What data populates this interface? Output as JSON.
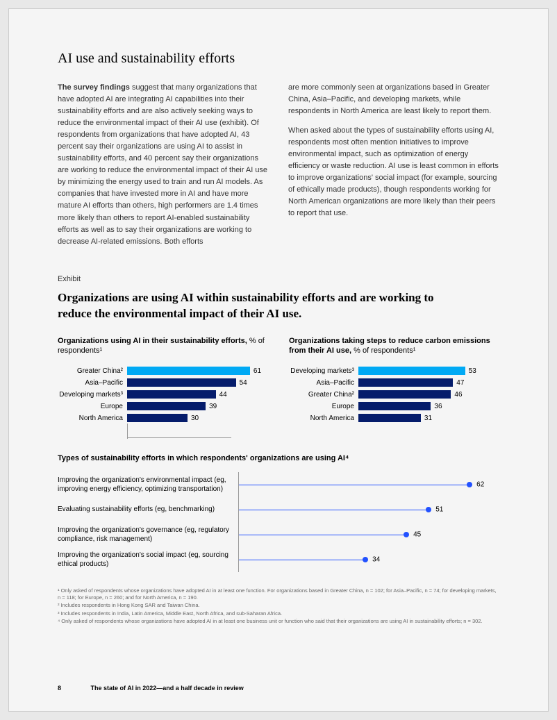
{
  "section_title": "AI use and sustainability efforts",
  "col1_para": "<span class='lead'>The survey findings</span> suggest that many organizations that have adopted AI are integrating AI capabilities into their sustainability efforts and are also actively seeking ways to reduce the environmental impact of their AI use (exhibit). Of respondents from organizations that have adopted AI, 43 percent say their organizations are using AI to assist in sustainability efforts, and 40 per­cent say their organizations are working to reduce the environmental impact of their AI use by minimizing the energy used to train and run AI models. As companies that have invested more in AI and have more mature AI efforts than others, high performers are 1.4 times more likely than others to report AI-enabled sustain­ability efforts as well as to say their organizations are working to decrease AI-related emissions. Both efforts",
  "col2_para1": "are more commonly seen at organizations based in Greater China, Asia–Pacific, and developing markets, while respondents in North America are least likely to report them.",
  "col2_para2": "When asked about the types of sustainability efforts using AI, respondents most often mention initiatives to improve environmental impact, such as optimiza­tion of energy efficiency or waste reduction. AI use is least common in efforts to improve organizations' social impact (for example, sourcing of ethically made products), though respondents working for North American organizations are more likely than their peers to report that use.",
  "exhibit_label": "Exhibit",
  "exhibit_title": "Organizations are using AI within sustainability efforts and are working to reduce the environmental impact of their AI use.",
  "chart1": {
    "title_bold": "Organizations using AI in their sustainability efforts,",
    "title_sub": " % of respondents¹",
    "max": 70,
    "highlight_color": "#00a9f4",
    "bar_color": "#051c6b",
    "rows": [
      {
        "label": "Greater China²",
        "value": 61,
        "highlight": true
      },
      {
        "label": "Asia–Pacific",
        "value": 54,
        "highlight": false
      },
      {
        "label": "Developing markets³",
        "value": 44,
        "highlight": false
      },
      {
        "label": "Europe",
        "value": 39,
        "highlight": false
      },
      {
        "label": "North America",
        "value": 30,
        "highlight": false
      }
    ]
  },
  "chart2": {
    "title_bold": "Organizations taking steps to reduce carbon emissions from their AI use,",
    "title_sub": " % of respondents¹",
    "max": 70,
    "highlight_color": "#00a9f4",
    "bar_color": "#051c6b",
    "rows": [
      {
        "label": "Developing markets³",
        "value": 53,
        "highlight": true
      },
      {
        "label": "Asia–Pacific",
        "value": 47,
        "highlight": false
      },
      {
        "label": "Greater China²",
        "value": 46,
        "highlight": false
      },
      {
        "label": "Europe",
        "value": 36,
        "highlight": false
      },
      {
        "label": "North America",
        "value": 31,
        "highlight": false
      }
    ]
  },
  "dot_chart": {
    "title": "Types of sustainability efforts in which respondents' organizations are using AI⁴",
    "max": 70,
    "line_color": "#2251ff",
    "dot_color": "#2251ff",
    "rows": [
      {
        "label": "Improving the organization's environmental impact (eg, improving energy efficiency, optimizing transportation)",
        "value": 62
      },
      {
        "label": "Evaluating sustainability efforts (eg, benchmarking)",
        "value": 51
      },
      {
        "label": "Improving the organization's governance (eg, regulatory compliance, risk management)",
        "value": 45
      },
      {
        "label": "Improving the organization's social impact (eg, sourcing ethical products)",
        "value": 34
      }
    ]
  },
  "footnotes": [
    "¹ Only asked of respondents whose organizations have adopted AI in at least one function. For organizations based in Greater China, n = 102; for Asia–Pacific, n = 74; for developing markets, n = 118; for Europe, n = 260; and for North America, n = 190.",
    "² Includes respondents in Hong Kong SAR and Taiwan China.",
    "³ Includes respondents in India, Latin America, Middle East, North Africa, and sub-Saharan Africa.",
    "⁴ Only asked of respondents whose organizations have adopted AI in at least one business unit or function who said that their organizations are using AI in sustainability efforts; n = 302."
  ],
  "page_number": "8",
  "footer_title": "The state of AI in 2022—and a half decade in review"
}
